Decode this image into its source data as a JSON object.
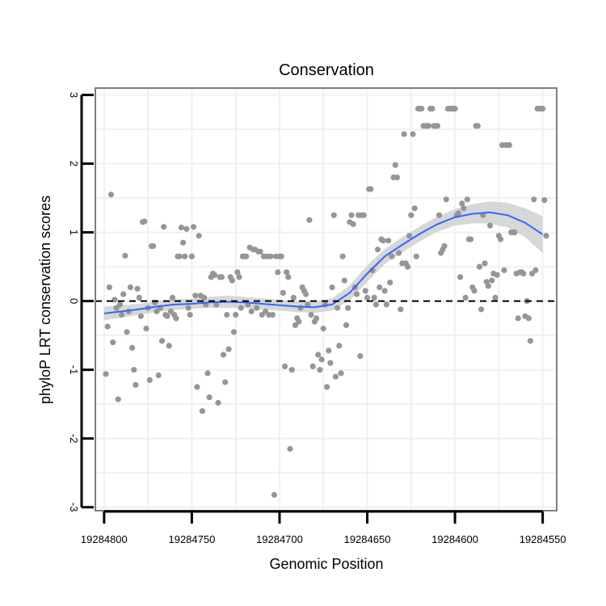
{
  "chart_data": {
    "type": "scatter",
    "title": "Conservation",
    "xlabel": "Genomic Position",
    "ylabel": "phyloP LRT conservation scores",
    "x_axis_reversed": true,
    "xlim": [
      19284805,
      19284542
    ],
    "ylim": [
      -3.05,
      3.1
    ],
    "x_ticks": [
      19284800,
      19284750,
      19284700,
      19284650,
      19284600,
      19284550
    ],
    "x_tick_labels": [
      "19284800",
      "19284750",
      "19284700",
      "19284650",
      "19284600",
      "19284550"
    ],
    "y_ticks": [
      -3,
      -2,
      -1,
      0,
      1,
      2,
      3
    ],
    "y_tick_labels": [
      "-3",
      "-2",
      "-1",
      "0",
      "1",
      "2",
      "3"
    ],
    "reference_line": {
      "y": 0,
      "style": "dashed",
      "color": "#000000"
    },
    "colors": {
      "points": "#969696",
      "smooth_line": "#3366ff",
      "confidence_band": "#d3d3d3",
      "grid": "#f0f0f0",
      "frame": "#7f7f7f"
    },
    "points": [
      [
        19284799,
        -1.06
      ],
      [
        19284798,
        -0.37
      ],
      [
        19284797,
        0.2
      ],
      [
        19284796,
        1.55
      ],
      [
        19284795,
        -0.6
      ],
      [
        19284794,
        0.02
      ],
      [
        19284793,
        -0.1
      ],
      [
        19284792,
        -1.43
      ],
      [
        19284791,
        -0.05
      ],
      [
        19284790,
        -0.2
      ],
      [
        19284789,
        0.1
      ],
      [
        19284788,
        0.66
      ],
      [
        19284787,
        -0.45
      ],
      [
        19284786,
        -0.15
      ],
      [
        19284785,
        0.2
      ],
      [
        19284784,
        -0.68
      ],
      [
        19284783,
        -1.0
      ],
      [
        19284782,
        -1.22
      ],
      [
        19284781,
        0.18
      ],
      [
        19284780,
        0.05
      ],
      [
        19284779,
        -0.22
      ],
      [
        19284778,
        1.15
      ],
      [
        19284777,
        1.16
      ],
      [
        19284776,
        -0.4
      ],
      [
        19284775,
        -0.1
      ],
      [
        19284774,
        -1.15
      ],
      [
        19284773,
        0.8
      ],
      [
        19284772,
        0.8
      ],
      [
        19284771,
        -0.02
      ],
      [
        19284770,
        -0.15
      ],
      [
        19284769,
        -1.08
      ],
      [
        19284768,
        -0.1
      ],
      [
        19284767,
        -0.58
      ],
      [
        19284766,
        1.08
      ],
      [
        19284765,
        -0.2
      ],
      [
        19284764,
        -0.22
      ],
      [
        19284763,
        -0.65
      ],
      [
        19284762,
        -0.15
      ],
      [
        19284761,
        0.05
      ],
      [
        19284760,
        -0.2
      ],
      [
        19284759,
        -0.25
      ],
      [
        19284758,
        0.65
      ],
      [
        19284757,
        0.65
      ],
      [
        19284756,
        1.07
      ],
      [
        19284755,
        0.85
      ],
      [
        19284754,
        0.65
      ],
      [
        19284753,
        1.05
      ],
      [
        19284752,
        -0.1
      ],
      [
        19284751,
        -0.2
      ],
      [
        19284750,
        0.65
      ],
      [
        19284749,
        1.08
      ],
      [
        19284748,
        0.08
      ],
      [
        19284747,
        -1.25
      ],
      [
        19284746,
        0.95
      ],
      [
        19284745,
        0.08
      ],
      [
        19284744,
        -1.6
      ],
      [
        19284743,
        0.05
      ],
      [
        19284742,
        -0.05
      ],
      [
        19284741,
        -1.05
      ],
      [
        19284740,
        -1.4
      ],
      [
        19284739,
        0.35
      ],
      [
        19284738,
        0.4
      ],
      [
        19284737,
        0.38
      ],
      [
        19284736,
        -0.05
      ],
      [
        19284735,
        -1.48
      ],
      [
        19284734,
        0.35
      ],
      [
        19284733,
        0.35
      ],
      [
        19284732,
        -0.78
      ],
      [
        19284731,
        -1.18
      ],
      [
        19284730,
        -0.2
      ],
      [
        19284729,
        -0.7
      ],
      [
        19284728,
        0.35
      ],
      [
        19284727,
        0.3
      ],
      [
        19284726,
        -0.45
      ],
      [
        19284725,
        -0.2
      ],
      [
        19284724,
        0.42
      ],
      [
        19284723,
        0.35
      ],
      [
        19284722,
        -0.1
      ],
      [
        19284721,
        0.65
      ],
      [
        19284720,
        0.65
      ],
      [
        19284719,
        0.65
      ],
      [
        19284718,
        -0.05
      ],
      [
        19284717,
        0.78
      ],
      [
        19284716,
        -0.15
      ],
      [
        19284715,
        0.75
      ],
      [
        19284714,
        0.75
      ],
      [
        19284713,
        -0.1
      ],
      [
        19284712,
        0.72
      ],
      [
        19284711,
        0.72
      ],
      [
        19284710,
        -0.2
      ],
      [
        19284709,
        0.65
      ],
      [
        19284708,
        -0.15
      ],
      [
        19284707,
        0.65
      ],
      [
        19284706,
        -0.2
      ],
      [
        19284705,
        0.65
      ],
      [
        19284704,
        -0.2
      ],
      [
        19284703,
        -2.82
      ],
      [
        19284702,
        0.65
      ],
      [
        19284701,
        0.42
      ],
      [
        19284700,
        0.65
      ],
      [
        19284699,
        0.65
      ],
      [
        19284698,
        0.12
      ],
      [
        19284697,
        -0.95
      ],
      [
        19284696,
        0.42
      ],
      [
        19284695,
        0.35
      ],
      [
        19284694,
        -2.15
      ],
      [
        19284693,
        -1.0
      ],
      [
        19284692,
        0.05
      ],
      [
        19284691,
        -0.35
      ],
      [
        19284690,
        -0.25
      ],
      [
        19284689,
        -0.3
      ],
      [
        19284688,
        -0.1
      ],
      [
        19284687,
        0.2
      ],
      [
        19284686,
        0.15
      ],
      [
        19284685,
        0.1
      ],
      [
        19284684,
        -0.05
      ],
      [
        19284683,
        1.18
      ],
      [
        19284682,
        -0.2
      ],
      [
        19284681,
        -0.95
      ],
      [
        19284680,
        -0.3
      ],
      [
        19284679,
        -0.25
      ],
      [
        19284678,
        -0.78
      ],
      [
        19284677,
        -1.0
      ],
      [
        19284676,
        -0.85
      ],
      [
        19284675,
        -0.4
      ],
      [
        19284674,
        -0.05
      ],
      [
        19284673,
        -1.25
      ],
      [
        19284672,
        -0.72
      ],
      [
        19284671,
        -0.9
      ],
      [
        19284670,
        0.2
      ],
      [
        19284669,
        1.25
      ],
      [
        19284668,
        -1.1
      ],
      [
        19284667,
        -0.1
      ],
      [
        19284666,
        -0.65
      ],
      [
        19284665,
        -1.05
      ],
      [
        19284664,
        0.65
      ],
      [
        19284663,
        0.3
      ],
      [
        19284662,
        -0.35
      ],
      [
        19284661,
        -0.1
      ],
      [
        19284660,
        1.15
      ],
      [
        19284659,
        1.25
      ],
      [
        19284658,
        1.12
      ],
      [
        19284657,
        0.2
      ],
      [
        19284656,
        0.1
      ],
      [
        19284655,
        1.25
      ],
      [
        19284654,
        -0.8
      ],
      [
        19284653,
        1.25
      ],
      [
        19284652,
        1.25
      ],
      [
        19284651,
        0.15
      ],
      [
        19284650,
        0.05
      ],
      [
        19284649,
        1.63
      ],
      [
        19284648,
        1.63
      ],
      [
        19284647,
        0.45
      ],
      [
        19284646,
        0.05
      ],
      [
        19284645,
        -0.05
      ],
      [
        19284644,
        0.75
      ],
      [
        19284643,
        0.2
      ],
      [
        19284642,
        0.9
      ],
      [
        19284641,
        0.88
      ],
      [
        19284640,
        0.15
      ],
      [
        19284639,
        -0.05
      ],
      [
        19284638,
        0.88
      ],
      [
        19284637,
        0.27
      ],
      [
        19284636,
        0.65
      ],
      [
        19284635,
        1.8
      ],
      [
        19284634,
        1.98
      ],
      [
        19284633,
        1.8
      ],
      [
        19284632,
        0.7
      ],
      [
        19284631,
        -0.12
      ],
      [
        19284630,
        0.55
      ],
      [
        19284629,
        2.43
      ],
      [
        19284628,
        0.55
      ],
      [
        19284627,
        0.5
      ],
      [
        19284626,
        0.95
      ],
      [
        19284625,
        1.25
      ],
      [
        19284624,
        2.43
      ],
      [
        19284623,
        1.35
      ],
      [
        19284622,
        0.65
      ],
      [
        19284621,
        2.8
      ],
      [
        19284620,
        2.8
      ],
      [
        19284619,
        2.8
      ],
      [
        19284618,
        2.55
      ],
      [
        19284617,
        2.55
      ],
      [
        19284616,
        2.55
      ],
      [
        19284615,
        2.55
      ],
      [
        19284614,
        2.8
      ],
      [
        19284613,
        2.8
      ],
      [
        19284612,
        2.55
      ],
      [
        19284611,
        2.55
      ],
      [
        19284610,
        2.55
      ],
      [
        19284609,
        1.25
      ],
      [
        19284608,
        0.7
      ],
      [
        19284607,
        0.75
      ],
      [
        19284606,
        0.8
      ],
      [
        19284605,
        1.48
      ],
      [
        19284604,
        2.8
      ],
      [
        19284603,
        2.8
      ],
      [
        19284602,
        2.8
      ],
      [
        19284601,
        2.8
      ],
      [
        19284600,
        2.8
      ],
      [
        19284599,
        1.25
      ],
      [
        19284598,
        1.28
      ],
      [
        19284597,
        0.35
      ],
      [
        19284596,
        1.42
      ],
      [
        19284595,
        1.35
      ],
      [
        19284594,
        0.05
      ],
      [
        19284593,
        1.48
      ],
      [
        19284592,
        0.9
      ],
      [
        19284591,
        0.9
      ],
      [
        19284590,
        0.2
      ],
      [
        19284589,
        0.15
      ],
      [
        19284588,
        2.55
      ],
      [
        19284587,
        2.55
      ],
      [
        19284586,
        0.5
      ],
      [
        19284585,
        -0.12
      ],
      [
        19284584,
        1.25
      ],
      [
        19284583,
        0.55
      ],
      [
        19284582,
        0.28
      ],
      [
        19284581,
        0.22
      ],
      [
        19284580,
        1.1
      ],
      [
        19284579,
        0.3
      ],
      [
        19284578,
        0.4
      ],
      [
        19284577,
        0.05
      ],
      [
        19284576,
        0.38
      ],
      [
        19284575,
        0.95
      ],
      [
        19284574,
        0.9
      ],
      [
        19284573,
        2.27
      ],
      [
        19284572,
        0.45
      ],
      [
        19284571,
        2.27
      ],
      [
        19284570,
        2.27
      ],
      [
        19284569,
        2.27
      ],
      [
        19284568,
        1.0
      ],
      [
        19284567,
        1.0
      ],
      [
        19284566,
        1.0
      ],
      [
        19284565,
        0.4
      ],
      [
        19284564,
        -0.25
      ],
      [
        19284563,
        0.42
      ],
      [
        19284562,
        0.42
      ],
      [
        19284561,
        0.4
      ],
      [
        19284560,
        -0.22
      ],
      [
        19284559,
        0.0
      ],
      [
        19284558,
        -0.25
      ],
      [
        19284557,
        -0.58
      ],
      [
        19284556,
        0.4
      ],
      [
        19284555,
        1.48
      ],
      [
        19284554,
        0.45
      ],
      [
        19284553,
        2.8
      ],
      [
        19284552,
        2.8
      ],
      [
        19284551,
        2.8
      ],
      [
        19284550,
        2.8
      ],
      [
        19284549,
        1.47
      ],
      [
        19284548,
        0.95
      ]
    ],
    "smooth_fit": {
      "x": [
        19284800,
        19284790,
        19284780,
        19284770,
        19284760,
        19284750,
        19284740,
        19284730,
        19284720,
        19284710,
        19284700,
        19284690,
        19284680,
        19284670,
        19284660,
        19284650,
        19284640,
        19284630,
        19284620,
        19284610,
        19284600,
        19284590,
        19284580,
        19284570,
        19284560,
        19284550
      ],
      "y": [
        -0.18,
        -0.15,
        -0.12,
        -0.08,
        -0.05,
        -0.04,
        -0.02,
        -0.01,
        -0.02,
        -0.04,
        -0.06,
        -0.08,
        -0.09,
        -0.05,
        0.12,
        0.4,
        0.65,
        0.82,
        0.98,
        1.12,
        1.22,
        1.27,
        1.29,
        1.25,
        1.14,
        0.97
      ],
      "lower": [
        -0.28,
        -0.24,
        -0.2,
        -0.16,
        -0.13,
        -0.11,
        -0.1,
        -0.1,
        -0.1,
        -0.12,
        -0.14,
        -0.16,
        -0.17,
        -0.14,
        0.01,
        0.28,
        0.54,
        0.71,
        0.87,
        1.01,
        1.1,
        1.13,
        1.13,
        1.07,
        0.93,
        0.7
      ],
      "upper": [
        -0.08,
        -0.06,
        -0.04,
        0.0,
        0.03,
        0.03,
        0.06,
        0.08,
        0.06,
        0.04,
        0.02,
        0.0,
        -0.01,
        0.04,
        0.23,
        0.52,
        0.76,
        0.93,
        1.09,
        1.23,
        1.34,
        1.41,
        1.45,
        1.43,
        1.35,
        1.24
      ]
    }
  }
}
